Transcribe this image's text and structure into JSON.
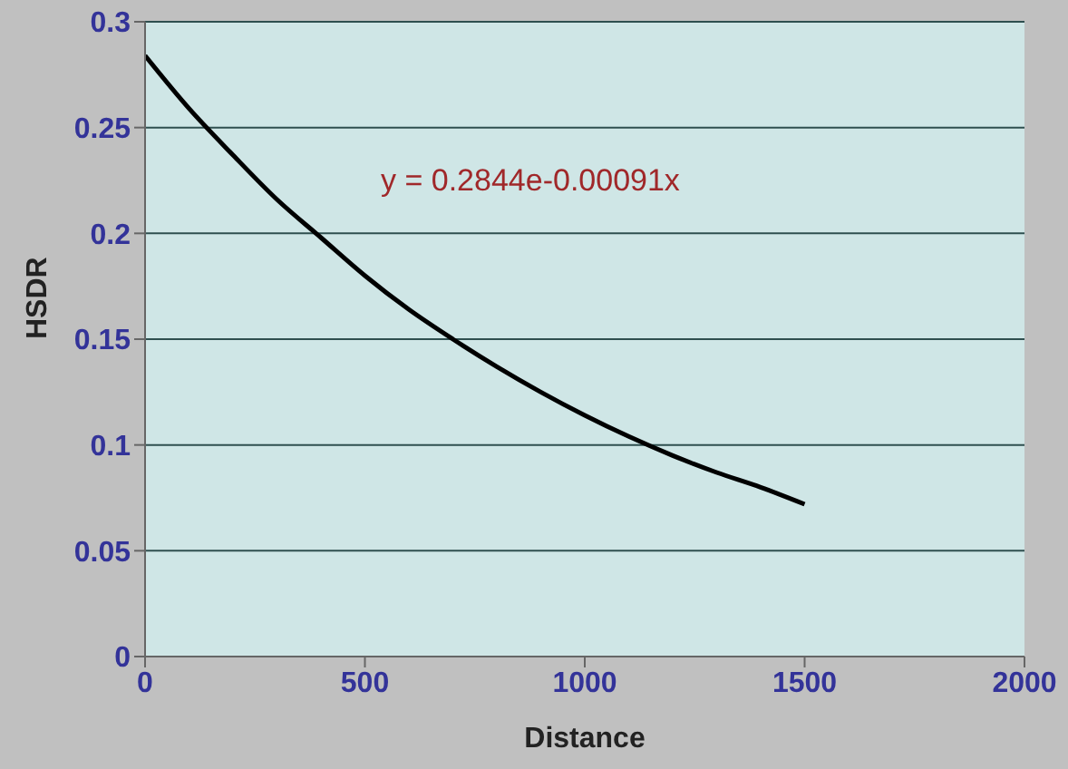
{
  "chart_data": {
    "type": "line",
    "xlabel": "Distance",
    "ylabel": "HSDR",
    "x": [
      0,
      100,
      200,
      300,
      400,
      500,
      600,
      700,
      800,
      900,
      1000,
      1100,
      1200,
      1300,
      1400,
      1500
    ],
    "series": [
      {
        "color": "#000000",
        "values": [
          0.284,
          0.259,
          0.237,
          0.216,
          0.198,
          0.18,
          0.164,
          0.15,
          0.137,
          0.125,
          0.114,
          0.104,
          0.095,
          0.087,
          0.08,
          0.072
        ]
      }
    ],
    "xlim": [
      0,
      2000
    ],
    "xticks": [
      0,
      500,
      1000,
      1500,
      2000
    ],
    "ylim": [
      0,
      0.3
    ],
    "yticks": [
      0,
      0.05,
      0.1,
      0.15,
      0.2,
      0.25,
      0.3
    ],
    "grid": "y",
    "marker": "none",
    "line_style": "solid",
    "annotations": [
      "y = 0.2844e-0.00091x"
    ]
  }
}
